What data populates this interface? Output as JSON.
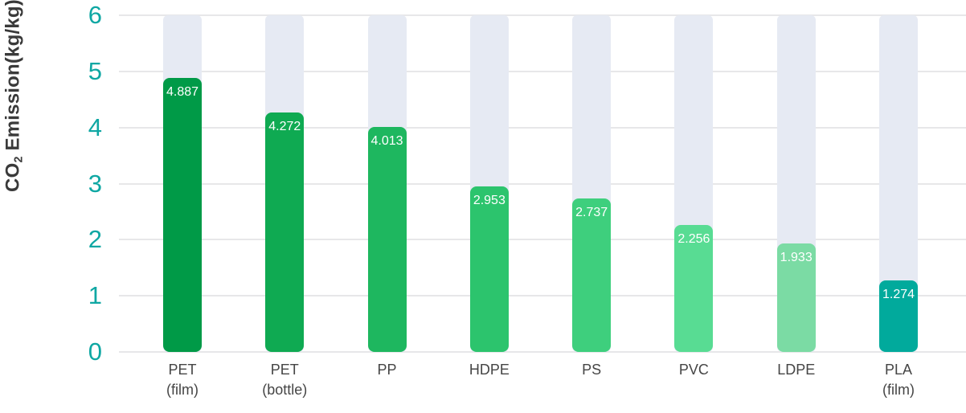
{
  "chart_data": {
    "type": "bar",
    "title": "",
    "xlabel": "",
    "ylabel": "CO2 Emission(kg/kg)",
    "ylabel_parts": {
      "prefix": "CO",
      "sub": "2",
      "suffix": " Emission(kg/kg)"
    },
    "categories": [
      [
        "PET",
        "(film)"
      ],
      [
        "PET",
        "(bottle)"
      ],
      [
        "PP"
      ],
      [
        "HDPE"
      ],
      [
        "PS"
      ],
      [
        "PVC"
      ],
      [
        "LDPE"
      ],
      [
        "PLA",
        "(film)"
      ]
    ],
    "values": [
      4.887,
      4.272,
      4.013,
      2.953,
      2.737,
      2.256,
      1.933,
      1.274
    ],
    "value_labels": [
      "4.887",
      "4.272",
      "4.013",
      "2.953",
      "2.737",
      "2.256",
      "1.933",
      "1.274"
    ],
    "bar_colors": [
      "#009A47",
      "#0FAA52",
      "#1EB75F",
      "#2CC46D",
      "#3ECF7D",
      "#58DC93",
      "#7BDBA4",
      "#01AA9C"
    ],
    "ylim": [
      0,
      6
    ],
    "yticks": [
      0,
      1,
      2,
      3,
      4,
      5,
      6
    ],
    "grid": "horizontal",
    "legend": "none",
    "styles": {
      "track_color": "#E6EAF3",
      "gridline_color": "#E7E7E9",
      "tick_label_color": "#0FA7A3",
      "category_label_color": "#454545",
      "value_label_color": "#FFFFFF",
      "axis_title_color": "#3A3A3A"
    }
  }
}
